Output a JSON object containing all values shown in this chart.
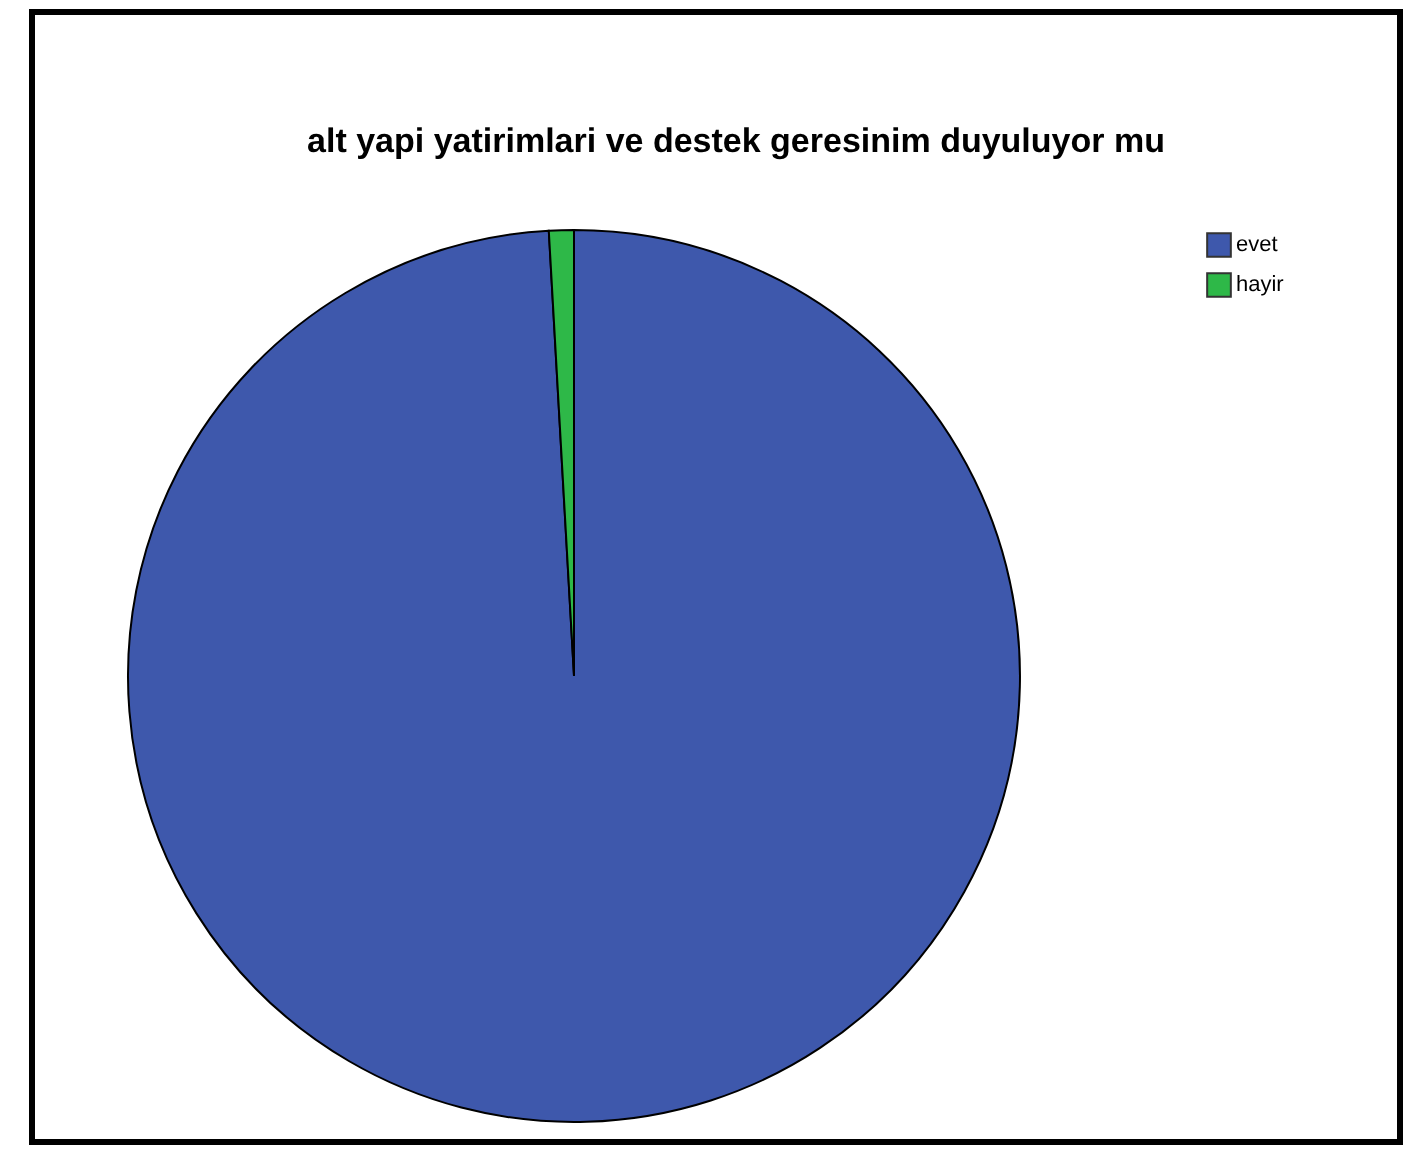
{
  "chart_data": {
    "type": "pie",
    "title": "alt yapi yatirimlari ve destek geresinim duyuluyor mu",
    "categories": [
      "evet",
      "hayir"
    ],
    "values": [
      99.1,
      0.9
    ],
    "colors": [
      "#3e58ac",
      "#2eb848"
    ],
    "legend": "top right"
  }
}
